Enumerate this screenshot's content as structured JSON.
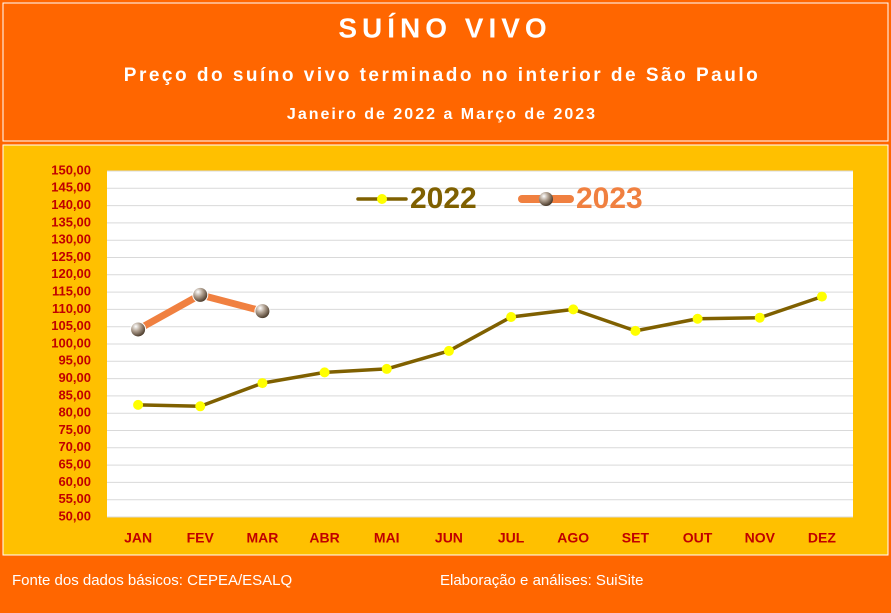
{
  "chart_data": {
    "type": "line",
    "title": "SUÍNO VIVO",
    "subtitle": "Preço do suíno vivo terminado no interior de São Paulo",
    "period": "Janeiro de 2022 a Março de 2023",
    "source": "Fonte dos dados básicos: CEPEA/ESALQ",
    "credit": "Elaboração e análises: SuiSite",
    "categories": [
      "JAN",
      "FEV",
      "MAR",
      "ABR",
      "MAI",
      "JUN",
      "JUL",
      "AGO",
      "SET",
      "OUT",
      "NOV",
      "DEZ"
    ],
    "series": [
      {
        "name": "2022",
        "color": "#7F6000",
        "marker_color": "#FFFF00",
        "values": [
          82.4,
          82.0,
          88.7,
          91.8,
          92.8,
          98.0,
          107.8,
          110.0,
          103.8,
          107.3,
          107.6,
          113.7
        ]
      },
      {
        "name": "2023",
        "color": "#F08040",
        "marker_color": "#A09080",
        "values": [
          104.2,
          114.2,
          109.5,
          null,
          null,
          null,
          null,
          null,
          null,
          null,
          null,
          null
        ]
      }
    ],
    "ylim": [
      50,
      150
    ],
    "yticks": [
      {
        "value": 50,
        "label": "50,00"
      },
      {
        "value": 55,
        "label": "55,00"
      },
      {
        "value": 60,
        "label": "60,00"
      },
      {
        "value": 65,
        "label": "65,00"
      },
      {
        "value": 70,
        "label": "70,00"
      },
      {
        "value": 75,
        "label": "75,00"
      },
      {
        "value": 80,
        "label": "80,00"
      },
      {
        "value": 85,
        "label": "85,00"
      },
      {
        "value": 90,
        "label": "90,00"
      },
      {
        "value": 95,
        "label": "95,00"
      },
      {
        "value": 100,
        "label": "100,00"
      },
      {
        "value": 105,
        "label": "105,00"
      },
      {
        "value": 110,
        "label": "110,00"
      },
      {
        "value": 115,
        "label": "115,00"
      },
      {
        "value": 120,
        "label": "120,00"
      },
      {
        "value": 125,
        "label": "125,00"
      },
      {
        "value": 130,
        "label": "130,00"
      },
      {
        "value": 135,
        "label": "135,00"
      },
      {
        "value": 140,
        "label": "140,00"
      },
      {
        "value": 145,
        "label": "145,00"
      },
      {
        "value": 150,
        "label": "150,00"
      }
    ],
    "grid": true
  }
}
